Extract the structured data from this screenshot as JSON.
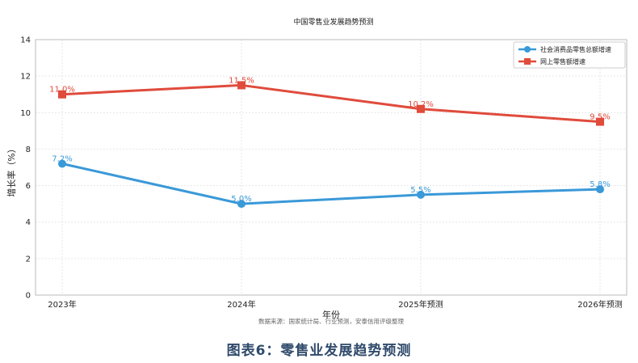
{
  "chart_data": {
    "type": "line",
    "title": "中国零售业发展趋势预测",
    "xlabel": "年份",
    "ylabel": "增长率（%）",
    "categories": [
      "2023年",
      "2024年",
      "2025年预测",
      "2026年预测"
    ],
    "ylim": [
      0,
      14
    ],
    "yticks": [
      0,
      2,
      4,
      6,
      8,
      10,
      12,
      14
    ],
    "grid": true,
    "legend_position": "top-right",
    "series": [
      {
        "name": "社会消费品零售总额增速",
        "values": [
          7.2,
          5.0,
          5.5,
          5.8
        ],
        "labels": [
          "7.2%",
          "5.0%",
          "5.5%",
          "5.8%"
        ],
        "color": "#3a99d8",
        "marker": "circle"
      },
      {
        "name": "网上零售额增速",
        "values": [
          11.0,
          11.5,
          10.2,
          9.5
        ],
        "labels": [
          "11.0%",
          "11.5%",
          "10.2%",
          "9.5%"
        ],
        "color": "#e04b3c",
        "marker": "square"
      }
    ],
    "source": "数据来源：国家统计局、行业预测，安泰信用评级整理"
  },
  "caption": "图表6：零售业发展趋势预测"
}
